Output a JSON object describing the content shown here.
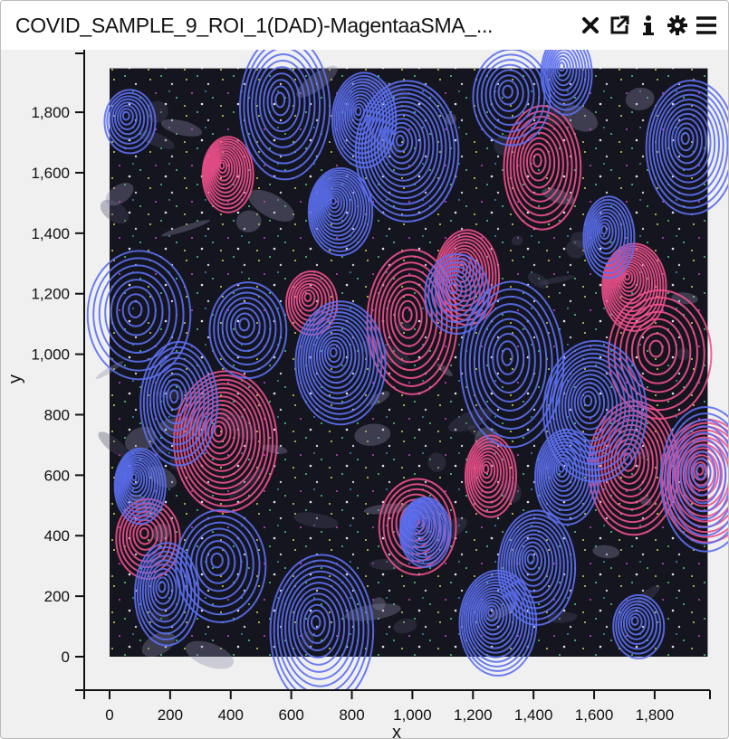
{
  "header": {
    "title": "COVID_SAMPLE_9_ROI_1(DAD)-MagentaaSMA_...",
    "icons": [
      "close-icon",
      "external-link-icon",
      "info-icon",
      "gear-icon",
      "menu-icon"
    ]
  },
  "colors": {
    "contour_a": "#5b6ff0",
    "contour_b": "#f0508c",
    "background": "#f0f0f0"
  },
  "chart_data": {
    "type": "image-with-density-contours",
    "xlabel": "x",
    "ylabel": "y",
    "xlim": [
      -80,
      1960
    ],
    "ylim": [
      -110,
      1940
    ],
    "x_ticks": [
      0,
      200,
      400,
      600,
      800,
      1000,
      1200,
      1400,
      1600,
      1800
    ],
    "x_tick_labels": [
      "0",
      "200",
      "400",
      "600",
      "800",
      "1,000",
      "1,200",
      "1,400",
      "1,600",
      "1,800"
    ],
    "y_ticks": [
      0,
      200,
      400,
      600,
      800,
      1000,
      1200,
      1400,
      1600,
      1800
    ],
    "y_tick_labels": [
      "0",
      "200",
      "400",
      "600",
      "800",
      "1,000",
      "1,200",
      "1,400",
      "1,600",
      "1,800"
    ],
    "image_extent": {
      "x": [
        0,
        1975
      ],
      "y": [
        0,
        1945
      ]
    },
    "blue_density_centers": [
      [
        60,
        1780
      ],
      [
        570,
        1830
      ],
      [
        830,
        1790
      ],
      [
        970,
        1690
      ],
      [
        1320,
        1860
      ],
      [
        1500,
        1940
      ],
      [
        1910,
        1700
      ],
      [
        750,
        1490
      ],
      [
        90,
        1140
      ],
      [
        220,
        850
      ],
      [
        90,
        580
      ],
      [
        750,
        990
      ],
      [
        1140,
        1210
      ],
      [
        1320,
        980
      ],
      [
        1400,
        310
      ],
      [
        1030,
        430
      ],
      [
        360,
        310
      ],
      [
        180,
        220
      ],
      [
        690,
        100
      ],
      [
        1270,
        130
      ],
      [
        1740,
        110
      ],
      [
        1960,
        600
      ],
      [
        1500,
        610
      ],
      [
        1590,
        830
      ],
      [
        450,
        1090
      ],
      [
        1640,
        1400
      ]
    ],
    "pink_density_centers": [
      [
        660,
        1180
      ],
      [
        990,
        1120
      ],
      [
        1170,
        1270
      ],
      [
        370,
        730
      ],
      [
        1010,
        440
      ],
      [
        1250,
        610
      ],
      [
        1720,
        640
      ],
      [
        1720,
        1240
      ],
      [
        1810,
        1010
      ],
      [
        1420,
        1630
      ],
      [
        380,
        1610
      ],
      [
        1960,
        600
      ],
      [
        120,
        400
      ]
    ]
  }
}
